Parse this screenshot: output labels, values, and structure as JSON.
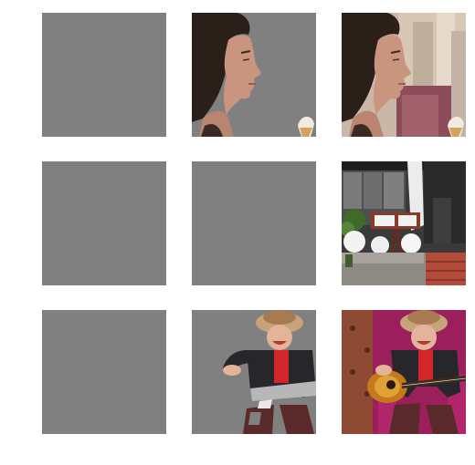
{
  "grid": {
    "background": "#ffffff",
    "mask_gray": "#808080",
    "rows": [
      {
        "row_id": "woman",
        "tiles": [
          {
            "kind": "empty-gray"
          },
          {
            "kind": "masked-cutout",
            "subject": "woman-face-profile-with-ice-cream-cone"
          },
          {
            "kind": "full-photo",
            "subject": "woman-face-profile-cafe-background"
          }
        ]
      },
      {
        "row_id": "storefront",
        "tiles": [
          {
            "kind": "empty-gray"
          },
          {
            "kind": "empty-gray"
          },
          {
            "kind": "full-photo",
            "subject": "restaurant-storefront-with-menu-board-and-white-globes"
          }
        ]
      },
      {
        "row_id": "guitarist",
        "tiles": [
          {
            "kind": "empty-gray"
          },
          {
            "kind": "masked-cutout",
            "subject": "man-in-fur-hat-playing-guitar"
          },
          {
            "kind": "full-photo",
            "subject": "man-in-fur-hat-playing-guitar-on-magenta-armchair"
          }
        ]
      }
    ]
  }
}
